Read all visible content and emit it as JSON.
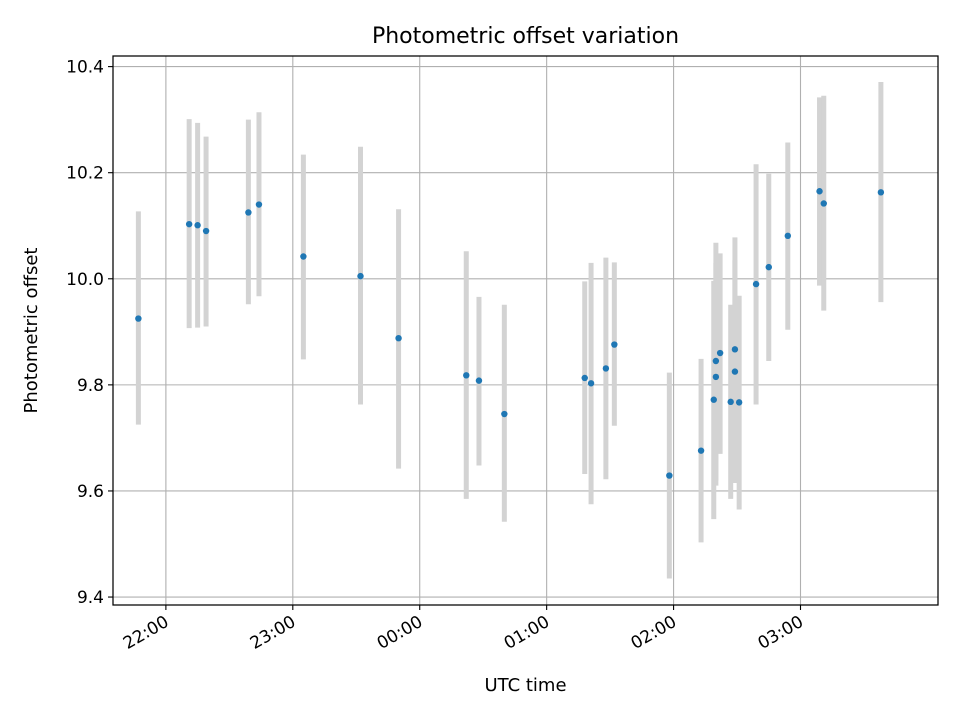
{
  "chart_data": {
    "type": "scatter",
    "title": "Photometric offset variation",
    "xlabel": "UTC time",
    "ylabel": "Photometric offset",
    "grid": true,
    "legend": "none",
    "x_axis": {
      "kind": "time",
      "range": [
        "21:35",
        "04:05"
      ],
      "ticks": [
        "22:00",
        "23:00",
        "00:00",
        "01:00",
        "02:00",
        "03:00"
      ]
    },
    "y_axis": {
      "range": [
        9.385,
        10.42
      ],
      "ticks": [
        "9.4",
        "9.6",
        "9.8",
        "10.0",
        "10.2",
        "10.4"
      ]
    },
    "colors": {
      "point": "#1f77b4",
      "errorbar": "#d3d3d3",
      "grid": "#b0b0b0"
    },
    "points": [
      {
        "t": "21:47",
        "y": 9.925,
        "low": 9.725,
        "high": 10.127
      },
      {
        "t": "22:11",
        "y": 10.103,
        "low": 9.907,
        "high": 10.301
      },
      {
        "t": "22:15",
        "y": 10.101,
        "low": 9.908,
        "high": 10.294
      },
      {
        "t": "22:19",
        "y": 10.09,
        "low": 9.91,
        "high": 10.268
      },
      {
        "t": "22:39",
        "y": 10.125,
        "low": 9.952,
        "high": 10.3
      },
      {
        "t": "22:44",
        "y": 10.14,
        "low": 9.967,
        "high": 10.314
      },
      {
        "t": "23:05",
        "y": 10.042,
        "low": 9.848,
        "high": 10.234
      },
      {
        "t": "23:32",
        "y": 10.005,
        "low": 9.763,
        "high": 10.249
      },
      {
        "t": "23:50",
        "y": 9.888,
        "low": 9.642,
        "high": 10.131
      },
      {
        "t": "00:22",
        "y": 9.818,
        "low": 9.585,
        "high": 10.052
      },
      {
        "t": "00:28",
        "y": 9.808,
        "low": 9.648,
        "high": 9.966
      },
      {
        "t": "00:40",
        "y": 9.745,
        "low": 9.542,
        "high": 9.951
      },
      {
        "t": "01:18",
        "y": 9.813,
        "low": 9.632,
        "high": 9.995
      },
      {
        "t": "01:21",
        "y": 9.803,
        "low": 9.575,
        "high": 10.03
      },
      {
        "t": "01:28",
        "y": 9.831,
        "low": 9.622,
        "high": 10.04
      },
      {
        "t": "01:32",
        "y": 9.876,
        "low": 9.723,
        "high": 10.031
      },
      {
        "t": "01:58",
        "y": 9.629,
        "low": 9.435,
        "high": 9.823
      },
      {
        "t": "02:13",
        "y": 9.676,
        "low": 9.503,
        "high": 9.849
      },
      {
        "t": "02:19",
        "y": 9.772,
        "low": 9.547,
        "high": 9.996
      },
      {
        "t": "02:20",
        "y": 9.815,
        "low": 9.61,
        "high": 10.03
      },
      {
        "t": "02:20",
        "y": 9.845,
        "low": 9.62,
        "high": 10.068
      },
      {
        "t": "02:22",
        "y": 9.86,
        "low": 9.67,
        "high": 10.048
      },
      {
        "t": "02:27",
        "y": 9.768,
        "low": 9.585,
        "high": 9.951
      },
      {
        "t": "02:29",
        "y": 9.825,
        "low": 9.615,
        "high": 10.035
      },
      {
        "t": "02:29",
        "y": 9.867,
        "low": 9.655,
        "high": 10.078
      },
      {
        "t": "02:31",
        "y": 9.767,
        "low": 9.565,
        "high": 9.968
      },
      {
        "t": "02:39",
        "y": 9.99,
        "low": 9.763,
        "high": 10.216
      },
      {
        "t": "02:45",
        "y": 10.022,
        "low": 9.845,
        "high": 10.198
      },
      {
        "t": "02:54",
        "y": 10.081,
        "low": 9.904,
        "high": 10.257
      },
      {
        "t": "03:09",
        "y": 10.165,
        "low": 9.987,
        "high": 10.342
      },
      {
        "t": "03:11",
        "y": 10.142,
        "low": 9.94,
        "high": 10.345
      },
      {
        "t": "03:38",
        "y": 10.163,
        "low": 9.956,
        "high": 10.371
      }
    ]
  }
}
